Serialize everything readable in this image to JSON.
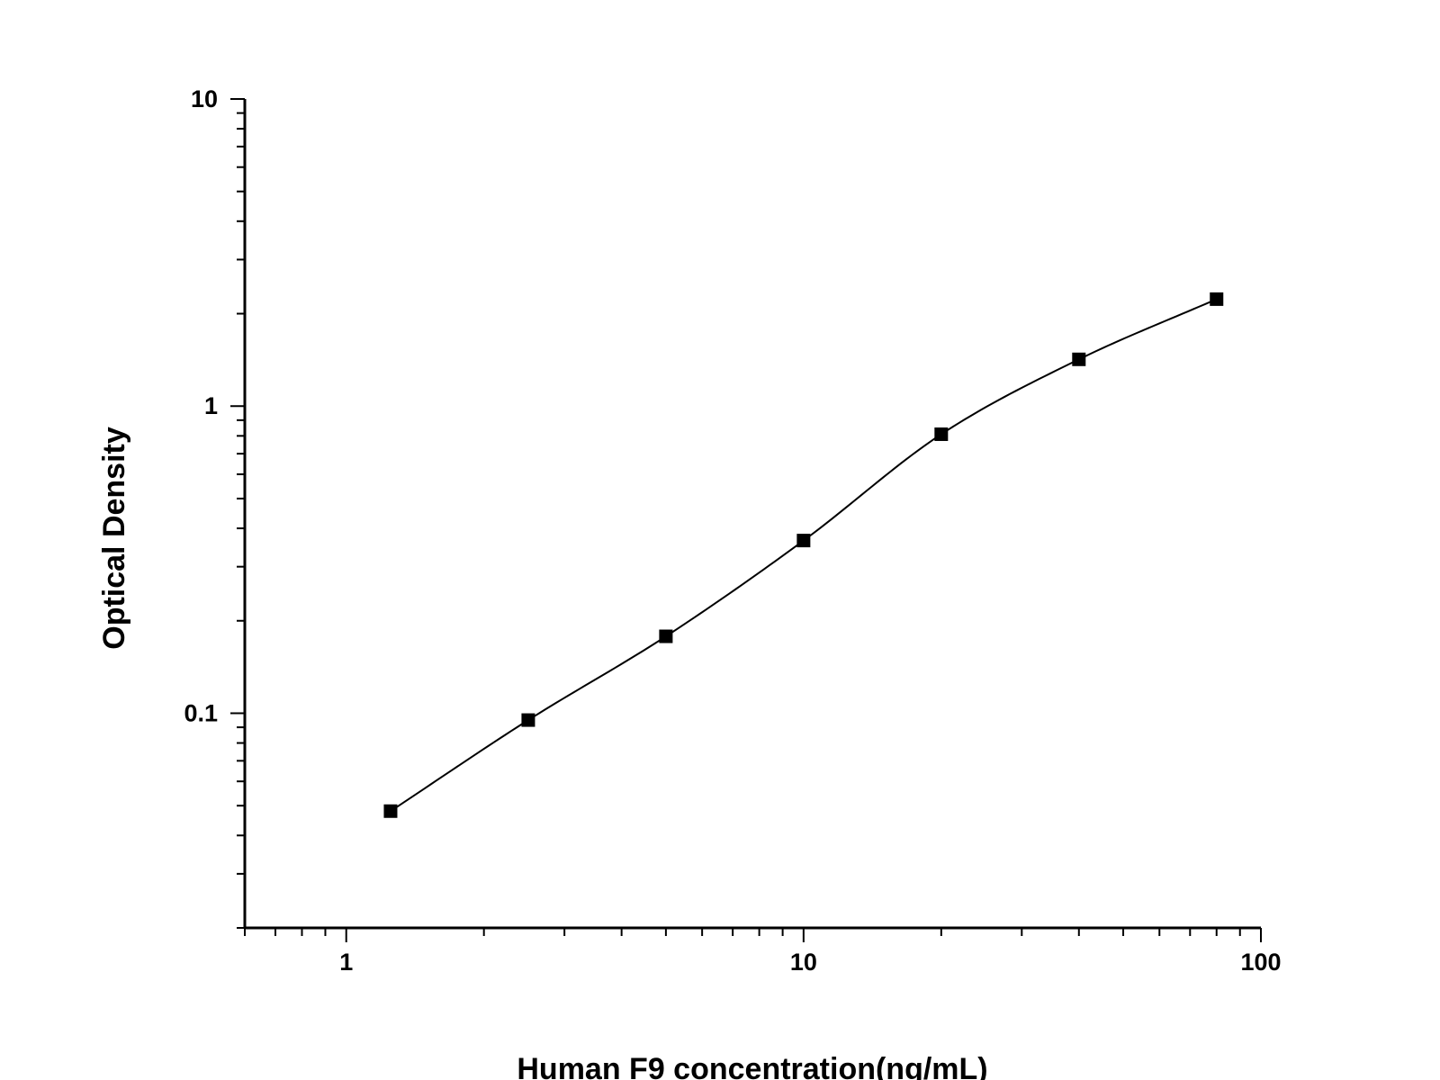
{
  "chart_data": {
    "type": "scatter",
    "title": "",
    "xlabel": "Human F9 concentration(ng/mL)",
    "ylabel": "Optical Density",
    "x_scale": "log",
    "y_scale": "log",
    "xlim": [
      0.6,
      100
    ],
    "ylim": [
      0.02,
      10
    ],
    "x_ticks": [
      {
        "value": 1,
        "label": "1"
      },
      {
        "value": 10,
        "label": "10"
      },
      {
        "value": 100,
        "label": "100"
      }
    ],
    "y_ticks": [
      {
        "value": 0.1,
        "label": "0.1"
      },
      {
        "value": 1,
        "label": "1"
      },
      {
        "value": 10,
        "label": "10"
      }
    ],
    "grid": false,
    "legend": "none",
    "marker": "square",
    "series": [
      {
        "x": [
          1.25,
          2.5,
          5,
          10,
          20,
          40,
          80
        ],
        "y": [
          0.048,
          0.095,
          0.178,
          0.365,
          0.81,
          1.42,
          2.23
        ]
      }
    ],
    "fit_curve": {
      "type": "four-parameter logistic",
      "x_range": [
        1.25,
        80
      ],
      "color": "#000000"
    },
    "colors": {
      "axis": "#000000",
      "marker": "#000000",
      "curve": "#000000"
    }
  }
}
